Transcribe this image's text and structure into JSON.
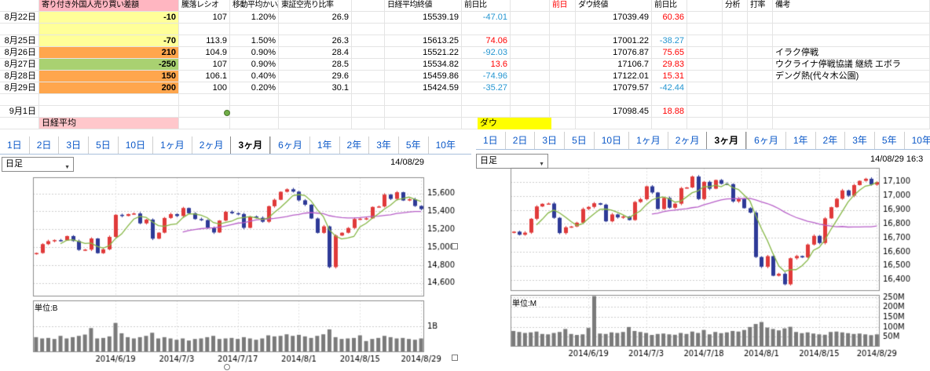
{
  "spreadsheet": {
    "labels": {
      "nikkei": "日経平均",
      "dow": "ダウ"
    },
    "rows": [
      {
        "c": [
          "",
          "寄り付き外国人売り買い差額",
          "騰落レシオ",
          "移動平均かい離",
          "東証空売り比率",
          "",
          "日経平均終値",
          "前日比",
          "",
          "前日",
          "ダウ終値",
          "前日比",
          "",
          "分析",
          "打率",
          "備考"
        ],
        "s": [
          "",
          "ph",
          "",
          "",
          "",
          "",
          "",
          "",
          "",
          "rt",
          "",
          "",
          "",
          "",
          "",
          ""
        ]
      },
      {
        "c": [
          "8月22日",
          "-10",
          "107",
          "1.20%",
          "26.9",
          "",
          "15539.19",
          "-47.01",
          "",
          "",
          "17039.49",
          "60.36",
          "",
          "",
          "",
          ""
        ],
        "s": [
          "date",
          "yl",
          "num",
          "num",
          "num",
          "",
          "num",
          "num bt",
          "",
          "",
          "num",
          "num rt",
          "",
          "",
          "",
          ""
        ]
      },
      {
        "c": [
          "",
          "",
          "",
          "",
          "",
          "",
          "",
          "",
          "",
          "",
          "",
          "",
          "",
          "",
          "",
          ""
        ],
        "s": [
          "",
          "yl",
          "",
          "",
          "",
          "",
          "",
          "",
          "",
          "",
          "",
          "",
          "",
          "",
          "",
          ""
        ]
      },
      {
        "c": [
          "8月25日",
          "-70",
          "113.9",
          "1.50%",
          "26.3",
          "",
          "15613.25",
          "74.06",
          "",
          "",
          "17001.22",
          "-38.27",
          "",
          "",
          "",
          ""
        ],
        "s": [
          "date",
          "yl",
          "num",
          "num",
          "num",
          "",
          "num",
          "num rt",
          "",
          "",
          "num",
          "num bt",
          "",
          "",
          "",
          ""
        ]
      },
      {
        "c": [
          "8月26日",
          "210",
          "104.9",
          "0.90%",
          "28.4",
          "",
          "15521.22",
          "-92.03",
          "",
          "",
          "17076.87",
          "75.65",
          "",
          "",
          "",
          "イラク停戦"
        ],
        "s": [
          "date",
          "or",
          "num",
          "num",
          "num",
          "",
          "num",
          "num bt",
          "",
          "",
          "num",
          "num rt",
          "",
          "",
          "",
          "note"
        ]
      },
      {
        "c": [
          "8月27日",
          "-250",
          "107",
          "0.90%",
          "28.5",
          "",
          "15534.82",
          "13.6",
          "",
          "",
          "17106.7",
          "29.83",
          "",
          "",
          "",
          "ウクライナ停戦協議 継続 エボラ"
        ],
        "s": [
          "date",
          "gr",
          "num",
          "num",
          "num",
          "",
          "num",
          "num rt",
          "",
          "",
          "num",
          "num rt",
          "",
          "",
          "",
          "note"
        ]
      },
      {
        "c": [
          "8月28日",
          "150",
          "106.1",
          "0.40%",
          "29.6",
          "",
          "15459.86",
          "-74.96",
          "",
          "",
          "17122.01",
          "15.31",
          "",
          "",
          "",
          "デング熱(代々木公園)"
        ],
        "s": [
          "date",
          "or",
          "num",
          "num",
          "num",
          "",
          "num",
          "num bt",
          "",
          "",
          "num",
          "num rt",
          "",
          "",
          "",
          "note"
        ]
      },
      {
        "c": [
          "8月29日",
          "200",
          "100",
          "0.20%",
          "30.1",
          "",
          "15424.59",
          "-35.27",
          "",
          "",
          "17079.57",
          "-42.44",
          "",
          "",
          "",
          ""
        ],
        "s": [
          "date",
          "or",
          "num",
          "num",
          "num",
          "",
          "num",
          "num bt",
          "",
          "",
          "num",
          "num bt",
          "",
          "",
          "",
          ""
        ]
      },
      {
        "c": [
          "",
          "",
          "",
          "",
          "",
          "",
          "",
          "",
          "",
          "",
          "",
          "",
          "",
          "",
          "",
          ""
        ],
        "s": [
          "",
          "",
          "",
          "",
          "",
          "",
          "",
          "",
          "",
          "",
          "",
          "",
          "",
          "",
          "",
          ""
        ]
      },
      {
        "c": [
          "9月1日",
          "",
          "",
          "",
          "",
          "",
          "",
          "",
          "",
          "",
          "17098.45",
          "18.88",
          "",
          "",
          "",
          ""
        ],
        "s": [
          "date",
          "",
          "",
          "",
          "",
          "",
          "",
          "",
          "",
          "",
          "num",
          "num rt",
          "",
          "",
          "",
          ""
        ]
      },
      {
        "c": [
          "",
          "日経平均",
          "",
          "",
          "",
          "",
          "",
          "",
          "",
          "",
          "",
          "",
          "",
          "",
          "",
          ""
        ],
        "s": [
          "",
          "lblp",
          "",
          "",
          "",
          "",
          "",
          "",
          "",
          "",
          "",
          "",
          "",
          "",
          "",
          ""
        ]
      }
    ]
  },
  "period_tabs": {
    "labels": [
      "1日",
      "2日",
      "3日",
      "5日",
      "10日",
      "1ヶ月",
      "2ヶ月",
      "3ヶ月",
      "6ヶ月",
      "1年",
      "2年",
      "3年",
      "5年",
      "10年"
    ],
    "selected_index": 7
  },
  "chart_controls": {
    "interval_label": "日足",
    "left_time": "14/08/29",
    "right_time": "14/08/29 16:3"
  },
  "chart_data": [
    {
      "type": "candlestick",
      "title": "日経平均 3ヶ月 日足",
      "unit_label": "単位:B",
      "y_ticks": [
        14600,
        14800,
        15000,
        15200,
        15400,
        15600
      ],
      "y_range": [
        14450,
        15780
      ],
      "volume_ticks": [
        {
          "v": 1,
          "label": "1B"
        }
      ],
      "volume_max": 2,
      "ma_periods": [
        5,
        25
      ],
      "x_tick_indices": [
        13,
        23,
        33,
        43,
        53,
        63
      ],
      "x_tick_labels": [
        "2014/6/19",
        "2014/7/3",
        "2014/7/17",
        "2014/8/1",
        "2014/8/15",
        "2014/8/29"
      ],
      "closes": [
        14935,
        15034,
        15067,
        15079,
        15077,
        15124,
        15069,
        14970,
        14973,
        15097,
        14933,
        14976,
        15115,
        15361,
        15349,
        15369,
        15376,
        15266,
        15308,
        15095,
        15162,
        15326,
        15369,
        15348,
        15437,
        15379,
        15314,
        15302,
        15216,
        15164,
        15297,
        15395,
        15379,
        15370,
        15216,
        15343,
        15328,
        15284,
        15457,
        15529,
        15618,
        15646,
        15620,
        15523,
        15474,
        15320,
        15160,
        15232,
        14778,
        15130,
        15161,
        15214,
        15314,
        15318,
        15322,
        15449,
        15454,
        15586,
        15539,
        15613,
        15521,
        15535,
        15460,
        15425
      ],
      "volumes": [
        0.55,
        0.5,
        0.52,
        0.48,
        0.6,
        0.5,
        0.55,
        0.6,
        0.65,
        0.9,
        0.5,
        0.52,
        0.58,
        1.1,
        0.7,
        0.55,
        0.5,
        0.55,
        0.6,
        0.72,
        0.5,
        0.55,
        0.5,
        0.45,
        0.5,
        0.42,
        0.48,
        0.5,
        0.55,
        0.6,
        0.48,
        0.5,
        0.52,
        0.48,
        0.55,
        0.5,
        0.45,
        0.5,
        0.62,
        0.58,
        0.6,
        0.66,
        0.6,
        0.64,
        0.58,
        0.52,
        0.6,
        0.66,
        0.85,
        0.55,
        0.48,
        0.5,
        0.52,
        0.62,
        0.4,
        0.48,
        0.52,
        0.6,
        0.55,
        0.5,
        0.52,
        0.48,
        0.45,
        0.5
      ],
      "colors": {
        "up": "#e03a3a",
        "down": "#2e3a97",
        "ma_short": "#85b644",
        "ma_long": "#b75fc8",
        "volume": "#7a7a7a"
      }
    },
    {
      "type": "candlestick",
      "title": "ダウ 3ヶ月 日足",
      "unit_label": "単位:M",
      "y_ticks": [
        16400,
        16500,
        16600,
        16700,
        16800,
        16900,
        17000,
        17100
      ],
      "y_range": [
        16320,
        17200
      ],
      "volume_ticks": [
        {
          "v": 250,
          "label": "250M"
        },
        {
          "v": 200,
          "label": "200M"
        },
        {
          "v": 150,
          "label": "150M"
        },
        {
          "v": 100,
          "label": "100M"
        },
        {
          "v": 50,
          "label": "50M"
        }
      ],
      "volume_max": 260,
      "ma_periods": [
        5,
        25
      ],
      "x_tick_indices": [
        13,
        23,
        33,
        43,
        53,
        63
      ],
      "x_tick_labels": [
        "2014/6/19",
        "2014/7/3",
        "2014/7/18",
        "2014/8/1",
        "2014/8/15",
        "2014/8/29"
      ],
      "closes": [
        16744,
        16722,
        16737,
        16836,
        16924,
        16943,
        16945,
        16843,
        16734,
        16775,
        16781,
        16808,
        16906,
        16921,
        16947,
        16937,
        16818,
        16867,
        16846,
        16852,
        16827,
        16956,
        16976,
        17068,
        17024,
        16906,
        16985,
        16915,
        16944,
        17055,
        17060,
        17138,
        16977,
        17100,
        17051,
        17113,
        17086,
        17084,
        16960,
        16982,
        16912,
        16880,
        16563,
        16493,
        16569,
        16429,
        16443,
        16368,
        16554,
        16570,
        16560,
        16652,
        16714,
        16663,
        16839,
        16919,
        16979,
        17039,
        17001,
        17077,
        17107,
        17122,
        17080,
        17098
      ],
      "volumes": [
        75,
        70,
        65,
        68,
        72,
        60,
        58,
        65,
        70,
        85,
        60,
        55,
        58,
        90,
        250,
        62,
        60,
        68,
        65,
        70,
        95,
        75,
        70,
        65,
        55,
        60,
        62,
        58,
        56,
        65,
        60,
        72,
        65,
        80,
        58,
        70,
        64,
        68,
        75,
        72,
        80,
        95,
        110,
        120,
        92,
        85,
        78,
        88,
        96,
        70,
        64,
        68,
        62,
        58,
        56,
        70,
        72,
        68,
        64,
        60,
        62,
        58,
        54,
        58
      ],
      "colors": {
        "up": "#e03a3a",
        "down": "#2e3a97",
        "ma_short": "#85b644",
        "ma_long": "#b75fc8",
        "volume": "#7a7a7a"
      }
    }
  ]
}
